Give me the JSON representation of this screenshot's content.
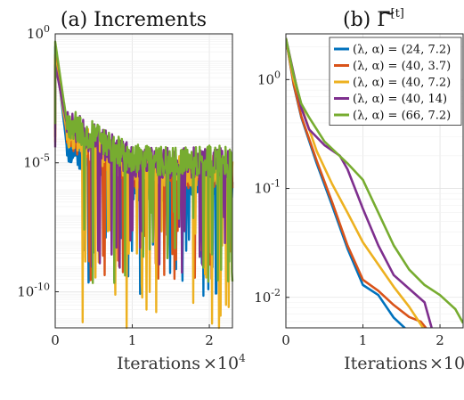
{
  "chart_data": [
    {
      "type": "line",
      "panel": "a",
      "title": "(a) Increments",
      "xlabel": "Iterations",
      "x_exponent_label": "×10",
      "x_exponent_sup": "4",
      "xlim": [
        0,
        2.3
      ],
      "ylim_log10": [
        -11.4,
        0
      ],
      "y_scale": "log",
      "grid": true,
      "x_ticks": [
        "0",
        "1",
        "2"
      ],
      "x_tick_values": [
        0,
        1,
        2
      ],
      "y_ticks": [
        {
          "base": "10",
          "exp": "0",
          "log": 0
        },
        {
          "base": "10",
          "exp": "-5",
          "log": -5
        },
        {
          "base": "10",
          "exp": "-10",
          "log": -10
        }
      ],
      "series": [
        {
          "color": "#0072BD",
          "start_log": -0.5,
          "floor_log": -9.2,
          "noise_base_log": -5.9,
          "seed": 11
        },
        {
          "color": "#D95319",
          "start_log": -0.8,
          "floor_log": -8.7,
          "noise_base_log": -5.4,
          "seed": 23
        },
        {
          "color": "#EDB120",
          "start_log": -1.0,
          "floor_log": -11.4,
          "noise_base_log": -5.3,
          "seed": 37
        },
        {
          "color": "#7E2F8E",
          "start_log": -1.2,
          "floor_log": -8.4,
          "noise_base_log": -5.0,
          "seed": 51
        },
        {
          "color": "#77AC30",
          "start_log": -0.3,
          "floor_log": -8.7,
          "noise_base_log": -4.9,
          "seed": 67
        }
      ]
    },
    {
      "type": "line",
      "panel": "b",
      "title_prefix": "(b) ",
      "title_symbol": "Γ",
      "title_sup": "[t]",
      "xlabel": "Iterations",
      "x_exponent_label": "×10",
      "x_exponent_sup": "4",
      "xlim": [
        0,
        2.3
      ],
      "ylim_log10": [
        -2.28,
        0.42
      ],
      "y_scale": "log",
      "grid": true,
      "legend_position": "top-right",
      "x_ticks": [
        "0",
        "1",
        "2"
      ],
      "x_tick_values": [
        0,
        1,
        2
      ],
      "y_ticks": [
        {
          "base": "10",
          "exp": "0",
          "log": 0
        },
        {
          "base": "10",
          "exp": "-1",
          "log": -1
        },
        {
          "base": "10",
          "exp": "-2",
          "log": -2
        }
      ],
      "series": [
        {
          "name": "(λ, α) = (24, 7.2)",
          "color": "#0072BD",
          "x": [
            0,
            0.1,
            0.2,
            0.4,
            0.6,
            0.8,
            1.0,
            1.2,
            1.4,
            1.6
          ],
          "y": [
            2.4,
            0.9,
            0.45,
            0.17,
            0.07,
            0.028,
            0.013,
            0.0105,
            0.0065,
            0.0048
          ]
        },
        {
          "name": "(λ, α) = (40, 3.7)",
          "color": "#D95319",
          "x": [
            0,
            0.1,
            0.2,
            0.4,
            0.6,
            0.8,
            1.0,
            1.2,
            1.4,
            1.6,
            1.75,
            1.85
          ],
          "y": [
            2.4,
            0.92,
            0.46,
            0.18,
            0.075,
            0.03,
            0.0145,
            0.0115,
            0.0085,
            0.0066,
            0.006,
            0.0049
          ]
        },
        {
          "name": "(λ, α) = (40, 7.2)",
          "color": "#EDB120",
          "x": [
            0,
            0.1,
            0.25,
            0.4,
            0.6,
            0.8,
            1.0,
            1.2,
            1.4,
            1.6,
            1.8
          ],
          "y": [
            2.4,
            1.0,
            0.45,
            0.22,
            0.11,
            0.06,
            0.032,
            0.02,
            0.0125,
            0.0082,
            0.005
          ]
        },
        {
          "name": "(λ, α) = (40, 14)",
          "color": "#7E2F8E",
          "x": [
            0,
            0.2,
            0.3,
            0.5,
            0.7,
            0.8,
            1.0,
            1.2,
            1.4,
            1.6,
            1.8,
            1.9
          ],
          "y": [
            2.4,
            0.55,
            0.35,
            0.25,
            0.2,
            0.15,
            0.065,
            0.03,
            0.016,
            0.012,
            0.009,
            0.005
          ]
        },
        {
          "name": "(λ, α) = (66, 7.2)",
          "color": "#77AC30",
          "x": [
            0,
            0.1,
            0.2,
            0.3,
            0.5,
            0.8,
            1.0,
            1.2,
            1.4,
            1.6,
            1.8,
            2.0,
            2.2,
            2.3
          ],
          "y": [
            2.4,
            1.1,
            0.6,
            0.45,
            0.27,
            0.17,
            0.12,
            0.06,
            0.03,
            0.018,
            0.013,
            0.0105,
            0.0078,
            0.0058
          ]
        }
      ]
    }
  ]
}
